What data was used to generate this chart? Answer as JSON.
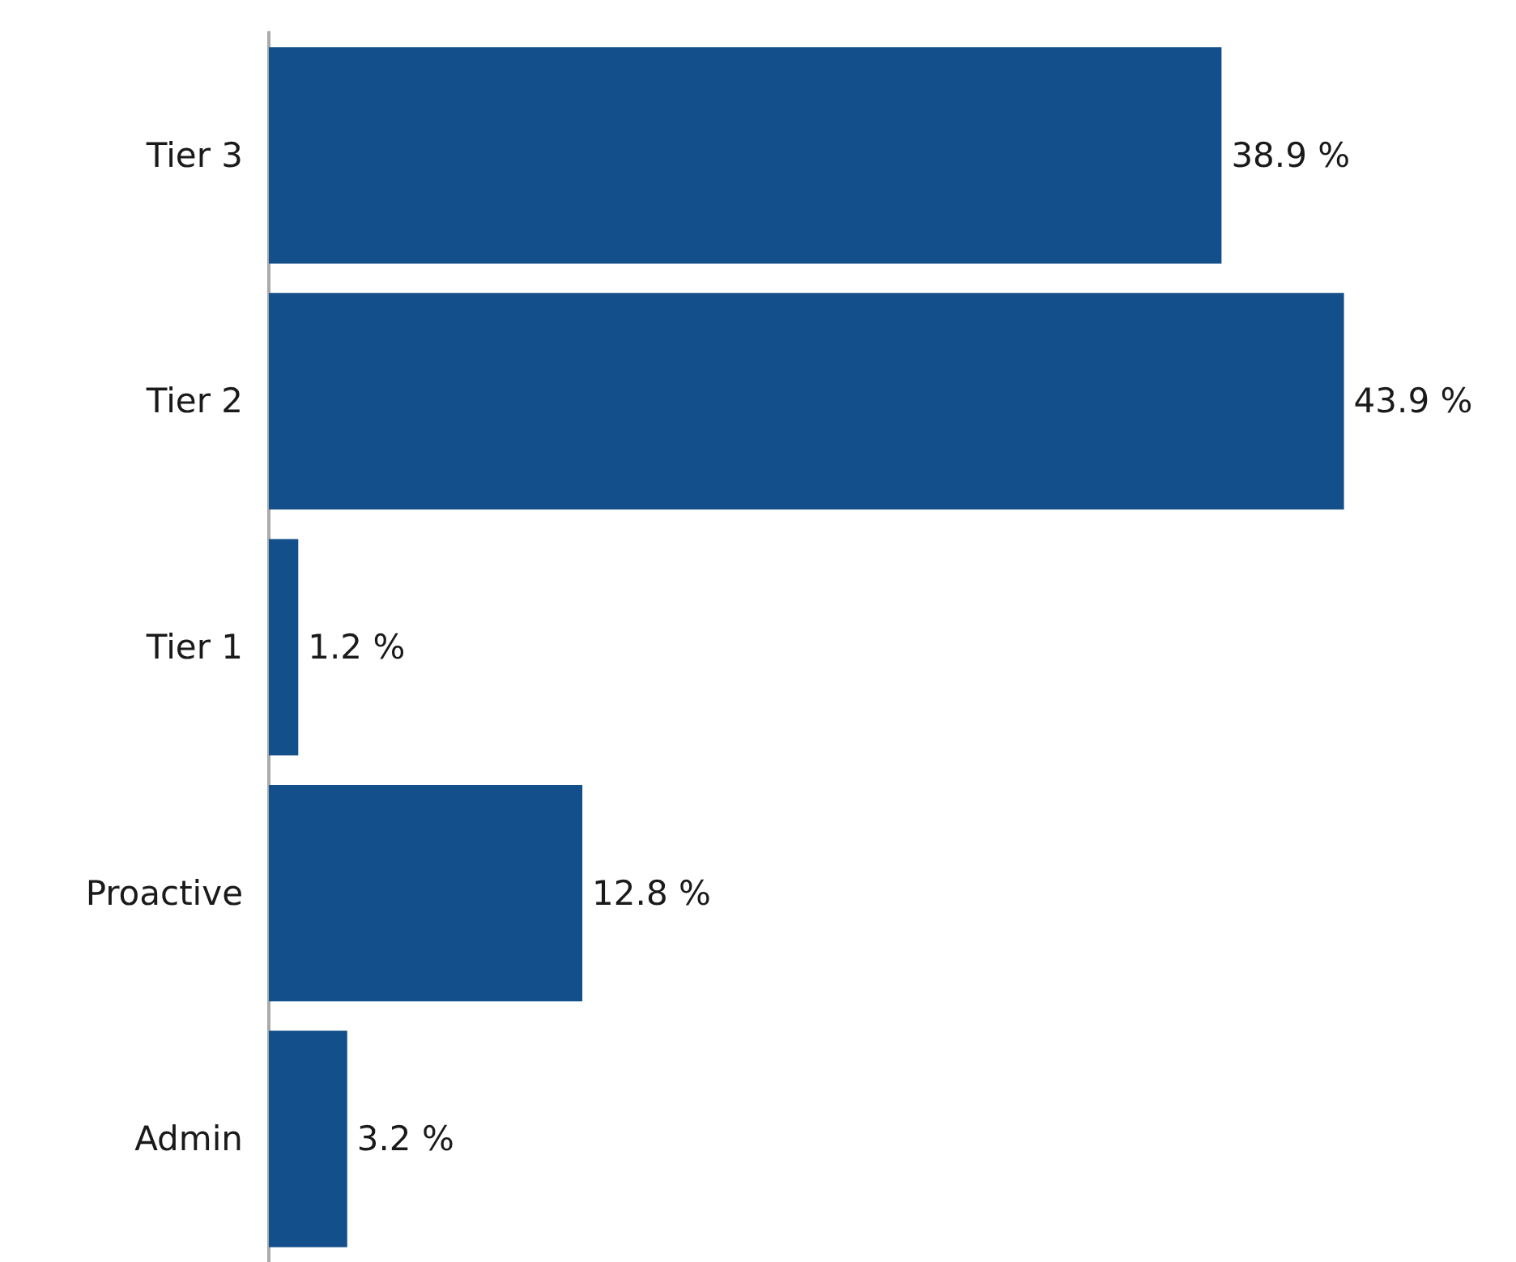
{
  "chart_data": {
    "type": "bar",
    "orientation": "horizontal",
    "tick_labels": "y",
    "categories": [
      "Tier 3",
      "Tier 2",
      "Tier 1",
      "Proactive",
      "Admin"
    ],
    "values": [
      38.9,
      43.9,
      1.2,
      12.8,
      3.2
    ],
    "value_labels": [
      "38.9 %",
      "43.9 %",
      "1.2 %",
      "12.8 %",
      "3.2 %"
    ],
    "color": "#134f8a"
  }
}
